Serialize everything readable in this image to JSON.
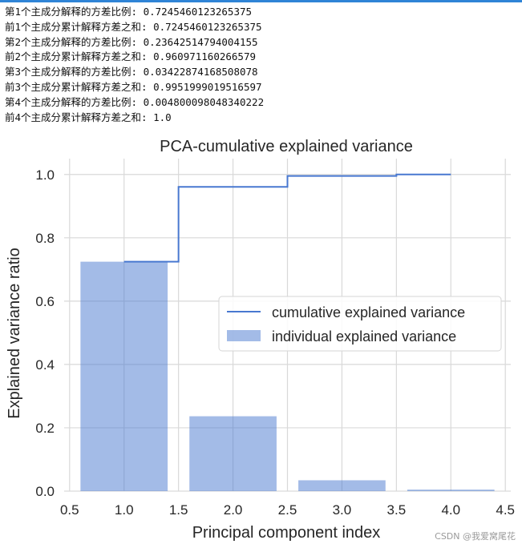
{
  "notebook_output": {
    "lines": [
      "第1个主成分解释的方差比例: 0.7245460123265375",
      "前1个主成分累计解释方差之和: 0.7245460123265375",
      "第2个主成分解释的方差比例: 0.23642514794004155",
      "前2个主成分累计解释方差之和: 0.960971160266579",
      "第3个主成分解释的方差比例: 0.03422874168508078",
      "前3个主成分累计解释方差之和: 0.9951999019516597",
      "第4个主成分解释的方差比例: 0.004800098048340222",
      "前4个主成分累计解释方差之和: 1.0"
    ]
  },
  "chart_data": {
    "type": "bar",
    "title": "PCA-cumulative explained variance",
    "xlabel": "Principal component index",
    "ylabel": "Explained variance ratio",
    "xlim": [
      0.45,
      4.55
    ],
    "ylim": [
      0.0,
      1.05
    ],
    "x_ticks": [
      0.5,
      1.0,
      1.5,
      2.0,
      2.5,
      3.0,
      3.5,
      4.0,
      4.5
    ],
    "x_tick_labels": [
      "0.5",
      "1.0",
      "1.5",
      "2.0",
      "2.5",
      "3.0",
      "3.5",
      "4.0",
      "4.5"
    ],
    "y_ticks": [
      0.0,
      0.2,
      0.4,
      0.6,
      0.8,
      1.0
    ],
    "y_tick_labels": [
      "0.0",
      "0.2",
      "0.4",
      "0.6",
      "0.8",
      "1.0"
    ],
    "grid": true,
    "legend_position": "center-right",
    "series": [
      {
        "name": "individual explained variance",
        "kind": "bar",
        "x": [
          1,
          2,
          3,
          4
        ],
        "values": [
          0.7245460123265375,
          0.23642514794004155,
          0.03422874168508078,
          0.004800098048340222
        ],
        "color": "#4878d0"
      },
      {
        "name": "cumulative explained variance",
        "kind": "step",
        "x": [
          1,
          2,
          3,
          4
        ],
        "values": [
          0.7245460123265375,
          0.960971160266579,
          0.9951999019516597,
          1.0
        ],
        "color": "#4878d0"
      }
    ]
  },
  "watermark": "CSDN @我爱窝尾花"
}
